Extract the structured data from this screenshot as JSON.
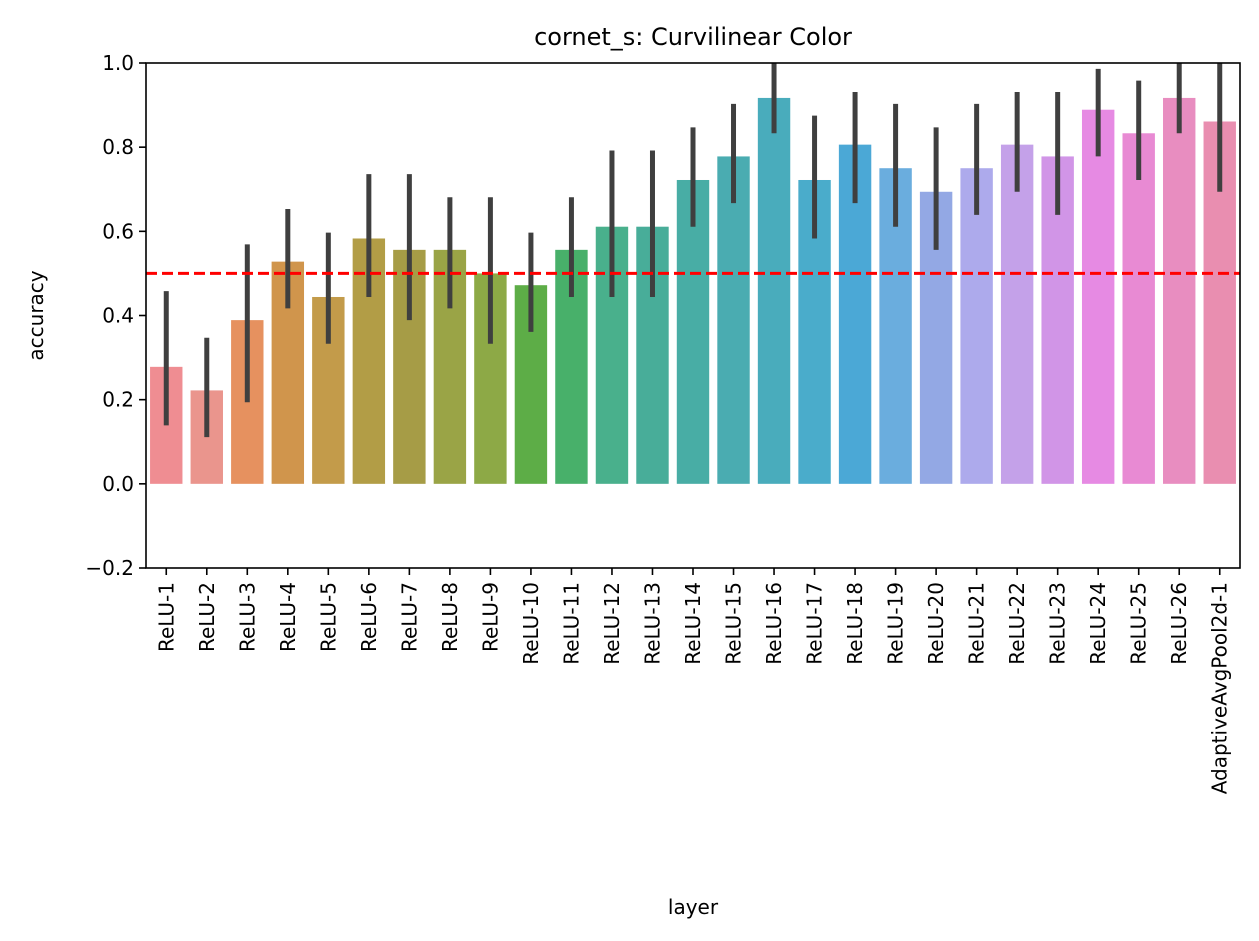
{
  "chart_data": {
    "type": "bar",
    "title": "cornet_s: Curvilinear Color",
    "xlabel": "layer",
    "ylabel": "accuracy",
    "ylim": [
      -0.2,
      1.0
    ],
    "yticks": [
      -0.2,
      0.0,
      0.2,
      0.4,
      0.6,
      0.8,
      1.0
    ],
    "ytick_labels": [
      "−0.2",
      "0.0",
      "0.2",
      "0.4",
      "0.6",
      "0.8",
      "1.0"
    ],
    "reference_line": {
      "y": 0.5,
      "color": "#ff0000",
      "style": "dashed"
    },
    "categories": [
      "ReLU-1",
      "ReLU-2",
      "ReLU-3",
      "ReLU-4",
      "ReLU-5",
      "ReLU-6",
      "ReLU-7",
      "ReLU-8",
      "ReLU-9",
      "ReLU-10",
      "ReLU-11",
      "ReLU-12",
      "ReLU-13",
      "ReLU-14",
      "ReLU-15",
      "ReLU-16",
      "ReLU-17",
      "ReLU-18",
      "ReLU-19",
      "ReLU-20",
      "ReLU-21",
      "ReLU-22",
      "ReLU-23",
      "ReLU-24",
      "ReLU-25",
      "ReLU-26",
      "AdaptiveAvgPool2d-1"
    ],
    "values": [
      0.278,
      0.222,
      0.389,
      0.528,
      0.444,
      0.583,
      0.556,
      0.556,
      0.5,
      0.472,
      0.556,
      0.611,
      0.611,
      0.722,
      0.778,
      0.917,
      0.722,
      0.806,
      0.75,
      0.694,
      0.75,
      0.806,
      0.778,
      0.889,
      0.833,
      0.917,
      0.861
    ],
    "ci_low": [
      0.139,
      0.111,
      0.194,
      0.417,
      0.333,
      0.444,
      0.389,
      0.417,
      0.333,
      0.361,
      0.444,
      0.444,
      0.444,
      0.611,
      0.667,
      0.833,
      0.583,
      0.667,
      0.611,
      0.556,
      0.639,
      0.694,
      0.639,
      0.778,
      0.722,
      0.833,
      0.694
    ],
    "ci_high": [
      0.458,
      0.347,
      0.569,
      0.653,
      0.597,
      0.736,
      0.736,
      0.681,
      0.681,
      0.597,
      0.681,
      0.792,
      0.792,
      0.847,
      0.903,
      1.0,
      0.875,
      0.931,
      0.903,
      0.847,
      0.903,
      0.931,
      0.931,
      0.986,
      0.958,
      1.0,
      1.0
    ],
    "colors": [
      "#ef8d92",
      "#ea958d",
      "#e6915f",
      "#d0954c",
      "#c39b4a",
      "#b29d46",
      "#a69c46",
      "#9aa446",
      "#8da946",
      "#5dad47",
      "#48b06a",
      "#49b08c",
      "#48ad99",
      "#48ada5",
      "#4aacb1",
      "#49acbc",
      "#4aaccb",
      "#4ba8d6",
      "#6aadde",
      "#93a8e4",
      "#adaaec",
      "#c4a1e9",
      "#d195e7",
      "#e68ae3",
      "#e88ad3",
      "#e88dc0",
      "#e98eb0"
    ],
    "errorbar_color": "#3f3f3f",
    "grid": false,
    "legend": "none"
  }
}
